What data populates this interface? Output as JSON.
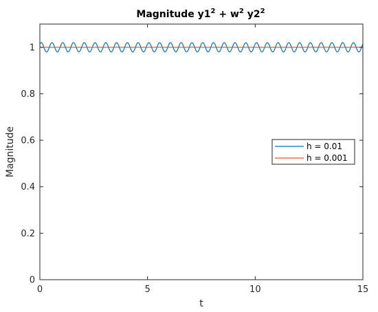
{
  "chart_data": {
    "type": "line",
    "title": {
      "base": "Magnitude y1",
      "sup1": "2",
      "mid1": " + w",
      "sup2": "2",
      "mid2": " y2",
      "sup3": "2"
    },
    "xlabel": "t",
    "ylabel": "Magnitude",
    "xlim": [
      0,
      15
    ],
    "ylim": [
      0,
      1.1
    ],
    "xticks": [
      0,
      5,
      10,
      15
    ],
    "xtick_labels": [
      "0",
      "5",
      "10",
      "15"
    ],
    "yticks": [
      0,
      0.2,
      0.4,
      0.6,
      0.8,
      1
    ],
    "ytick_labels": [
      "0",
      "0.2",
      "0.4",
      "0.6",
      "0.8",
      "1"
    ],
    "grid": false,
    "legend_position": "right",
    "series": [
      {
        "name": "h = 0.01",
        "color": "#0072BD",
        "mean": 1.0,
        "amplitude": 0.02,
        "period": 0.5,
        "phase": 0.785
      },
      {
        "name": "h = 0.001",
        "color": "#D95319",
        "mean": 1.0,
        "amplitude": 0.0,
        "period": 0.5,
        "phase": 0
      }
    ]
  }
}
